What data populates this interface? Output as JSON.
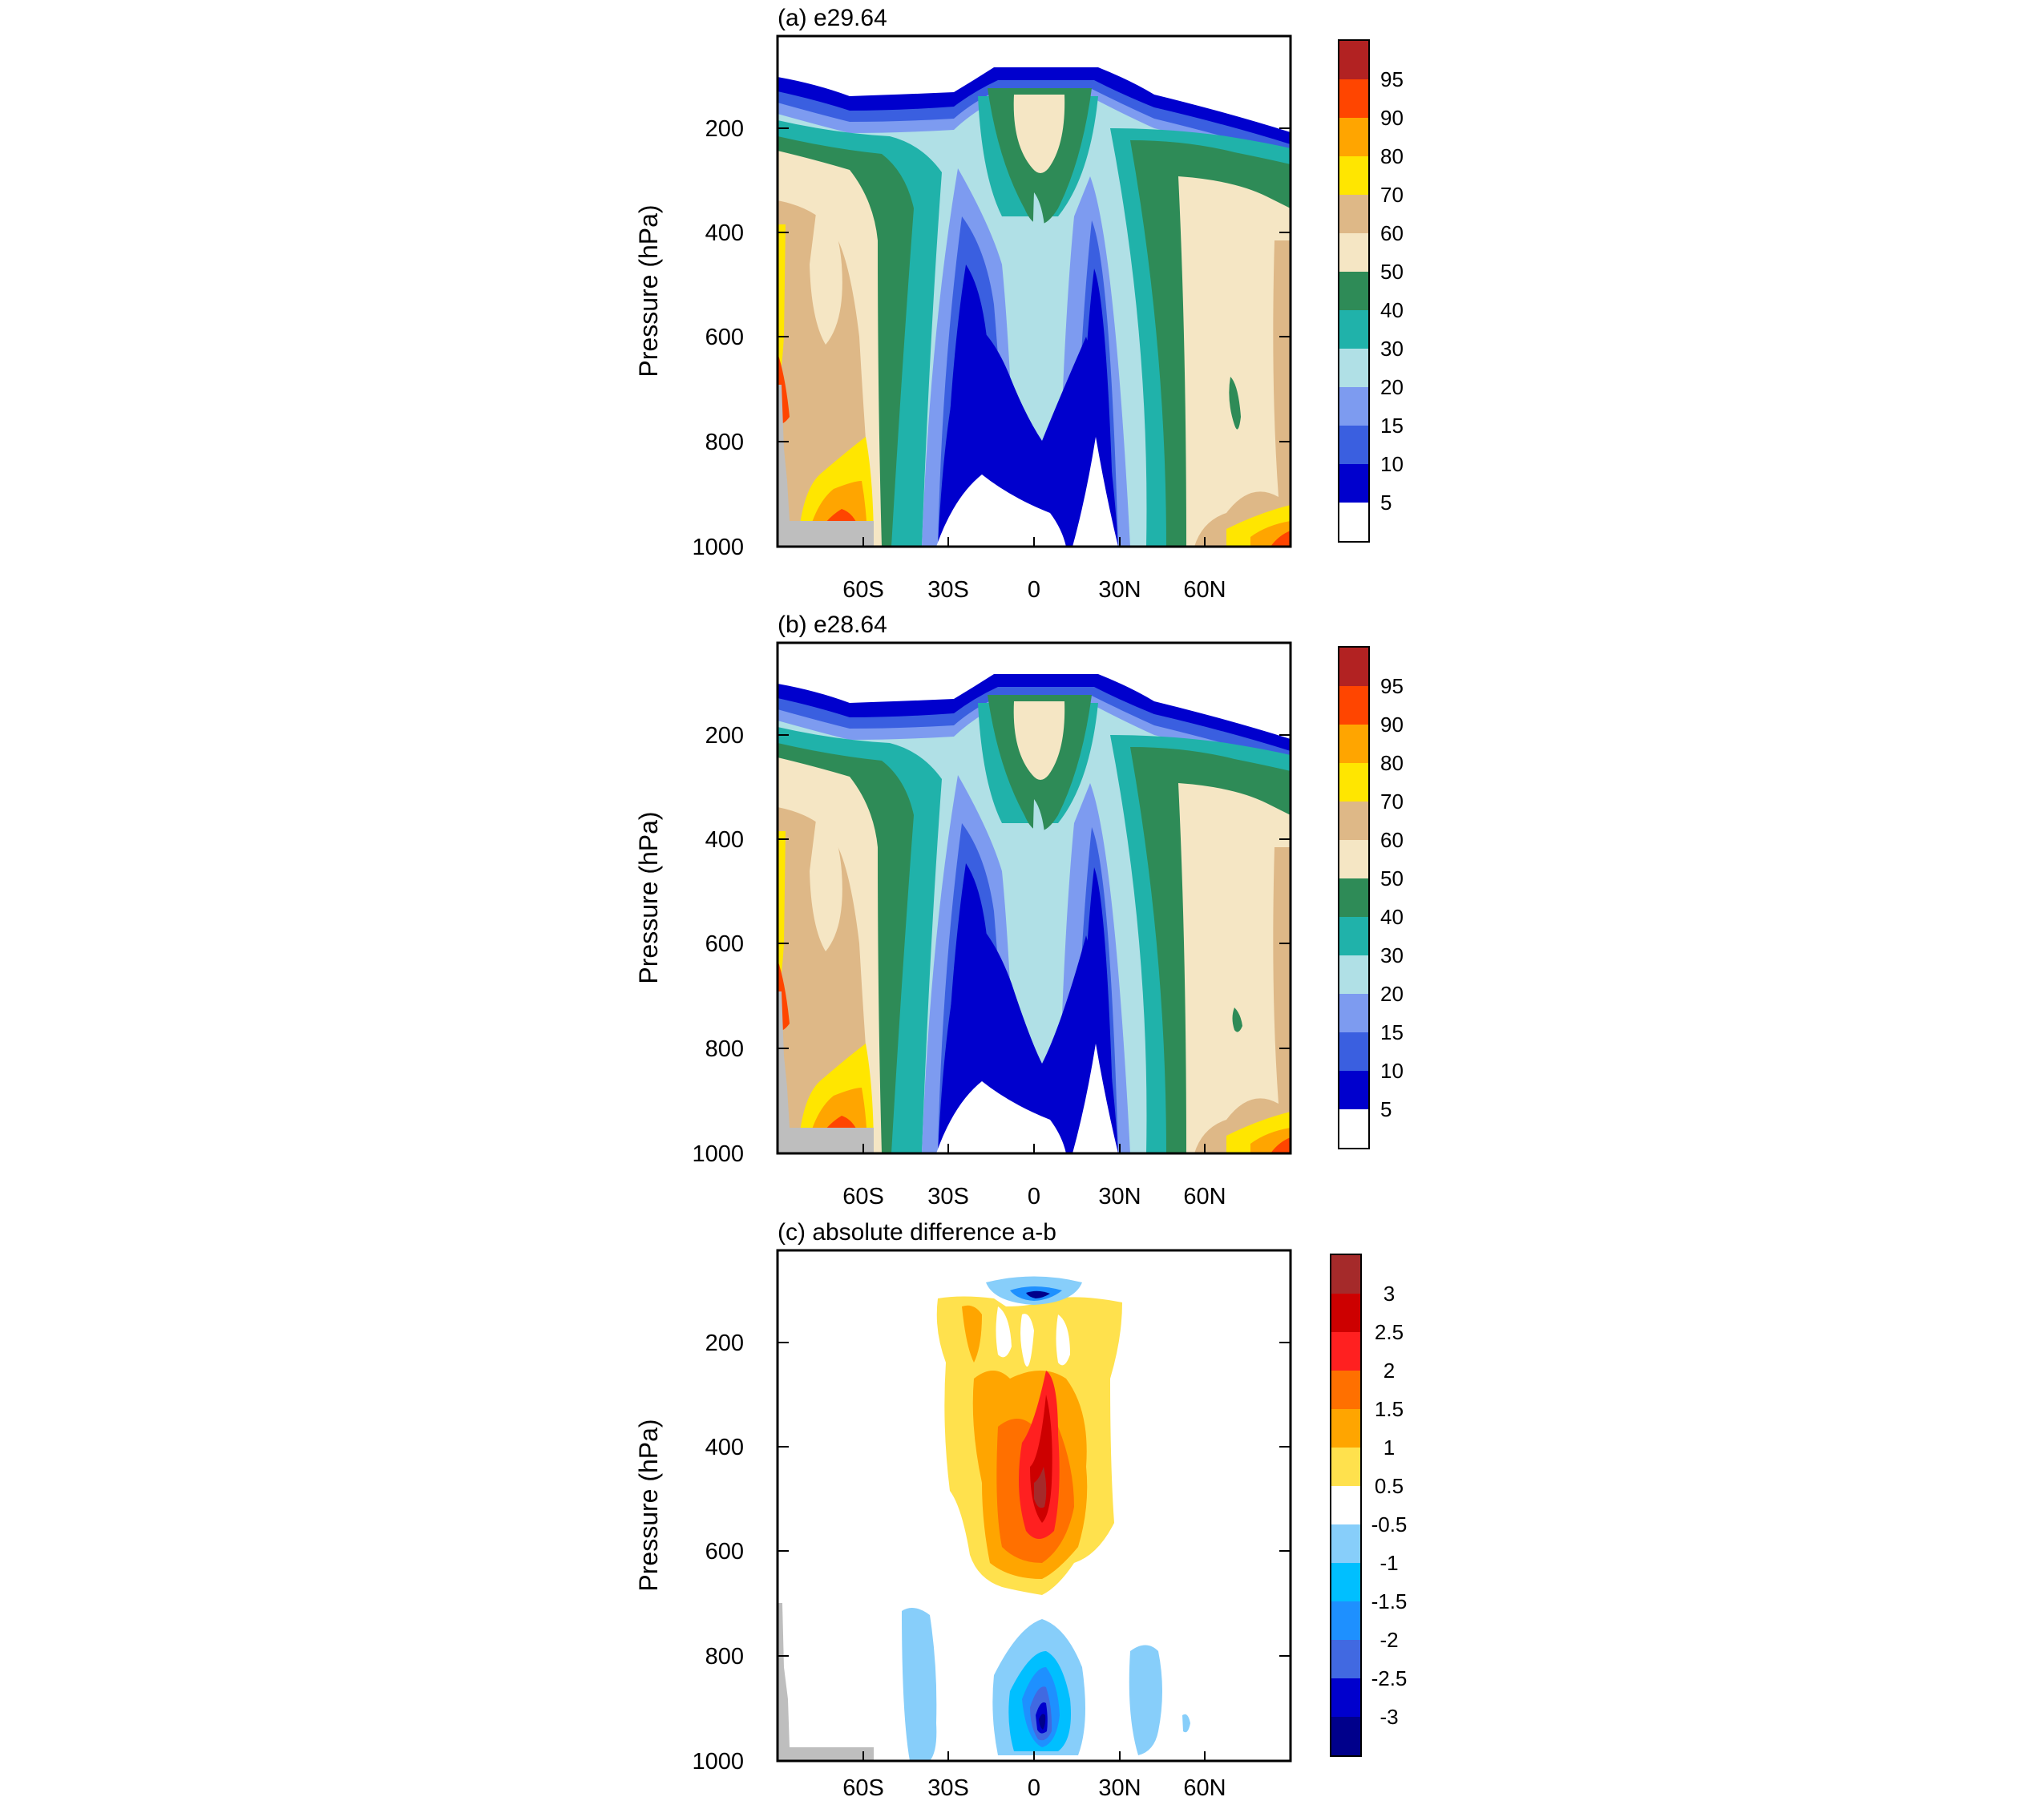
{
  "figure": {
    "panels": [
      {
        "id": "a",
        "title": "(a) e29.64",
        "ylabel": "Pressure (hPa)",
        "y_ticks": [
          "200",
          "400",
          "600",
          "800",
          "1000"
        ],
        "x_ticks": [
          "60S",
          "30S",
          "0",
          "30N",
          "60N"
        ],
        "colorbar_labels": [
          "95",
          "90",
          "80",
          "70",
          "60",
          "50",
          "40",
          "30",
          "20",
          "15",
          "10",
          "5"
        ]
      },
      {
        "id": "b",
        "title": "(b) e28.64",
        "ylabel": "Pressure (hPa)",
        "y_ticks": [
          "200",
          "400",
          "600",
          "800",
          "1000"
        ],
        "x_ticks": [
          "60S",
          "30S",
          "0",
          "30N",
          "60N"
        ],
        "colorbar_labels": [
          "95",
          "90",
          "80",
          "70",
          "60",
          "50",
          "40",
          "30",
          "20",
          "15",
          "10",
          "5"
        ]
      },
      {
        "id": "c",
        "title": "(c) absolute difference a-b",
        "ylabel": "Pressure (hPa)",
        "y_ticks": [
          "200",
          "400",
          "600",
          "800",
          "1000"
        ],
        "x_ticks": [
          "60S",
          "30S",
          "0",
          "30N",
          "60N"
        ],
        "colorbar_labels": [
          "3",
          "2.5",
          "2",
          "1.5",
          "1",
          "0.5",
          "-0.5",
          "-1",
          "-1.5",
          "-2",
          "-2.5",
          "-3"
        ]
      }
    ]
  },
  "chart_data": [
    {
      "type": "heatmap",
      "title": "(a) e29.64",
      "xlabel": "",
      "ylabel": "Pressure (hPa)",
      "x_ticks": [
        "60S",
        "30S",
        "0",
        "30N",
        "60N"
      ],
      "y_ticks": [
        200,
        400,
        600,
        800,
        1000
      ],
      "ylim": [
        1000,
        25
      ],
      "y_reversed": true,
      "levels": [
        5,
        10,
        15,
        20,
        30,
        40,
        50,
        60,
        70,
        80,
        90,
        95
      ],
      "colors": [
        "#ffffff",
        "#0000cd",
        "#3a5fe0",
        "#7d9bf0",
        "#b0e0e6",
        "#20b2aa",
        "#2e8b57",
        "#f5e6c4",
        "#deb887",
        "#ffe600",
        "#ffa500",
        "#ff4500",
        "#b22222"
      ],
      "features": [
        {
          "region": "tropical low values",
          "lat_range": [
            "20S",
            "30N"
          ],
          "pressure_range_hPa": [
            500,
            1000
          ],
          "value_range": "<10"
        },
        {
          "region": "southern high-latitude maximum",
          "lat_range": [
            "75S",
            "60S"
          ],
          "pressure_range_hPa": [
            800,
            1000
          ],
          "value_range": "70-95"
        },
        {
          "region": "northern polar surface maximum",
          "lat_range": [
            "75N",
            "90N"
          ],
          "pressure_range_hPa": [
            950,
            1000
          ],
          "value_range": "70-90"
        },
        {
          "region": "tropopause equatorial maximum",
          "lat_range": [
            "5S",
            "5N"
          ],
          "pressure_range_hPa": [
            120,
            280
          ],
          "value_range": "50-60"
        }
      ]
    },
    {
      "type": "heatmap",
      "title": "(b) e28.64",
      "xlabel": "",
      "ylabel": "Pressure (hPa)",
      "x_ticks": [
        "60S",
        "30S",
        "0",
        "30N",
        "60N"
      ],
      "y_ticks": [
        200,
        400,
        600,
        800,
        1000
      ],
      "ylim": [
        1000,
        25
      ],
      "y_reversed": true,
      "levels": [
        5,
        10,
        15,
        20,
        30,
        40,
        50,
        60,
        70,
        80,
        90,
        95
      ],
      "colors": [
        "#ffffff",
        "#0000cd",
        "#3a5fe0",
        "#7d9bf0",
        "#b0e0e6",
        "#20b2aa",
        "#2e8b57",
        "#f5e6c4",
        "#deb887",
        "#ffe600",
        "#ffa500",
        "#ff4500",
        "#b22222"
      ],
      "features": [
        {
          "region": "tropical low values",
          "lat_range": [
            "20S",
            "30N"
          ],
          "pressure_range_hPa": [
            450,
            1000
          ],
          "value_range": "<10"
        },
        {
          "region": "southern high-latitude maximum",
          "lat_range": [
            "75S",
            "60S"
          ],
          "pressure_range_hPa": [
            800,
            1000
          ],
          "value_range": "70-95"
        },
        {
          "region": "northern polar surface maximum",
          "lat_range": [
            "75N",
            "90N"
          ],
          "pressure_range_hPa": [
            950,
            1000
          ],
          "value_range": "70-90"
        },
        {
          "region": "tropopause equatorial maximum",
          "lat_range": [
            "5S",
            "5N"
          ],
          "pressure_range_hPa": [
            120,
            280
          ],
          "value_range": "50-60"
        }
      ]
    },
    {
      "type": "heatmap",
      "title": "(c) absolute difference a-b",
      "xlabel": "",
      "ylabel": "Pressure (hPa)",
      "x_ticks": [
        "60S",
        "30S",
        "0",
        "30N",
        "60N"
      ],
      "y_ticks": [
        200,
        400,
        600,
        800,
        1000
      ],
      "ylim": [
        1000,
        25
      ],
      "y_reversed": true,
      "levels": [
        -3,
        -2.5,
        -2,
        -1.5,
        -1,
        -0.5,
        0.5,
        1,
        1.5,
        2,
        2.5,
        3
      ],
      "colors": [
        "#00008b",
        "#0000cd",
        "#4169e1",
        "#1e90ff",
        "#00bfff",
        "#87cefa",
        "#ffffff",
        "#ffe14d",
        "#ffa500",
        "#ff7000",
        "#ff2020",
        "#cd0000",
        "#a52a2a"
      ],
      "features": [
        {
          "region": "positive tropical column",
          "lat_range": [
            "30S",
            "30N"
          ],
          "pressure_range_hPa": [
            120,
            700
          ],
          "value_range": "0.5-3"
        },
        {
          "region": "strongest positive core",
          "lat_range": [
            "5S",
            "10N"
          ],
          "pressure_range_hPa": [
            350,
            650
          ],
          "value_range": "2-3"
        },
        {
          "region": "negative near-surface equatorial",
          "lat_range": [
            "10S",
            "15N"
          ],
          "pressure_range_hPa": [
            730,
            1000
          ],
          "value_range": "-0.5 to -3"
        },
        {
          "region": "negative upper equatorial",
          "lat_range": [
            "10S",
            "15N"
          ],
          "pressure_range_hPa": [
            40,
            100
          ],
          "value_range": "-0.5 to -2.5"
        },
        {
          "region": "weak negative subtropical lower",
          "lat_range": [
            "45S",
            "25S"
          ],
          "pressure_range_hPa": [
            720,
            1000
          ],
          "value_range": "-0.5 to -1"
        },
        {
          "region": "weak negative northern lower",
          "lat_range": [
            "30N",
            "45N"
          ],
          "pressure_range_hPa": [
            700,
            980
          ],
          "value_range": "-0.5 to -1"
        }
      ]
    }
  ]
}
